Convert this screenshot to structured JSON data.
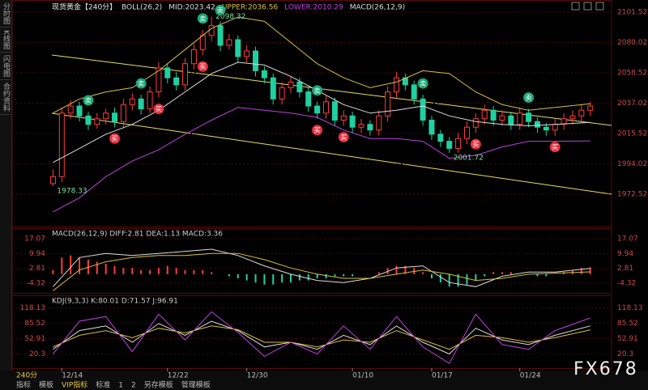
{
  "sidebar": [
    "分时图",
    "K线图",
    "闪电图",
    "合约资料"
  ],
  "chart_data": [
    {
      "type": "candlestick",
      "title": "现货黄金【240分】",
      "indicator_labels": [
        "BOLL(26,2)",
        "MID:2023.42",
        "UPPER:2036.56",
        "LOWER:2010.29",
        "MACD(26,12,9)"
      ],
      "indicator_colors": [
        "#dddddd",
        "#dddddd",
        "#d8c040",
        "#c040e0",
        "#dddddd"
      ],
      "xlim": [
        -0.5,
        62.5
      ],
      "xticks": [
        {
          "value": 1,
          "label": "12/14"
        },
        {
          "value": 13,
          "label": "12/22"
        },
        {
          "value": 22,
          "label": "12/30"
        },
        {
          "value": 34,
          "label": "01/10"
        },
        {
          "value": 43,
          "label": "01/17"
        },
        {
          "value": 53,
          "label": "01/24"
        }
      ],
      "ylim": [
        1949.6,
        2108.4
      ],
      "yticks": [
        2101.52,
        2080.02,
        2058.52,
        2037.02,
        2015.52,
        1994.02,
        1972.52
      ],
      "grid": true,
      "up_color": "#ff3c3c",
      "down_color": "#20d0a0",
      "open": [
        1980,
        1985,
        2030,
        2035,
        2028,
        2022,
        2026,
        2030,
        2024,
        2036,
        2040,
        2033,
        2045,
        2062,
        2055,
        2050,
        2065,
        2075,
        2085,
        2092,
        2078,
        2082,
        2070,
        2074,
        2060,
        2055,
        2040,
        2048,
        2052,
        2045,
        2035,
        2030,
        2038,
        2025,
        2028,
        2020,
        2022,
        2018,
        2028,
        2045,
        2055,
        2050,
        2040,
        2025,
        2015,
        2010,
        2005,
        2012,
        2020,
        2026,
        2032,
        2025,
        2028,
        2022,
        2030,
        2024,
        2020,
        2018,
        2022,
        2026,
        2028,
        2032
      ],
      "high": [
        1990,
        2034,
        2039,
        2038,
        2031,
        2030,
        2033,
        2034,
        2040,
        2044,
        2043,
        2049,
        2066,
        2065,
        2059,
        2069,
        2079,
        2089,
        2098.32,
        2095,
        2086,
        2085,
        2078,
        2077,
        2063,
        2058,
        2052,
        2056,
        2055,
        2048,
        2038,
        2042,
        2041,
        2032,
        2031,
        2026,
        2025,
        2032,
        2049,
        2059,
        2058,
        2053,
        2043,
        2028,
        2018,
        2013,
        2016,
        2024,
        2030,
        2036,
        2035,
        2032,
        2031,
        2034,
        2033,
        2027,
        2023,
        2026,
        2030,
        2032,
        2036,
        2038
      ],
      "low": [
        1978.33,
        1981,
        2026,
        2024,
        2018,
        2019,
        2022,
        2020,
        2020,
        2032,
        2029,
        2030,
        2041,
        2051,
        2046,
        2046,
        2061,
        2071,
        2081,
        2074,
        2075,
        2066,
        2066,
        2056,
        2051,
        2036,
        2036,
        2044,
        2041,
        2031,
        2026,
        2026,
        2021,
        2021,
        2016,
        2016,
        2014,
        2014,
        2024,
        2041,
        2046,
        2036,
        2021,
        2011,
        2006,
        2001.72,
        2002,
        2008,
        2016,
        2022,
        2021,
        2021,
        2018,
        2018,
        2020,
        2016,
        2014,
        2014,
        2018,
        2022,
        2024,
        2028
      ],
      "close": [
        1985,
        2030,
        2035,
        2028,
        2022,
        2026,
        2030,
        2024,
        2036,
        2040,
        2033,
        2045,
        2062,
        2055,
        2050,
        2065,
        2075,
        2085,
        2092,
        2078,
        2082,
        2070,
        2074,
        2060,
        2055,
        2040,
        2048,
        2052,
        2045,
        2035,
        2030,
        2038,
        2025,
        2028,
        2020,
        2022,
        2018,
        2028,
        2045,
        2055,
        2050,
        2040,
        2025,
        2015,
        2010,
        2005,
        2012,
        2020,
        2026,
        2032,
        2025,
        2028,
        2022,
        2030,
        2024,
        2020,
        2018,
        2022,
        2026,
        2028,
        2032,
        2035
      ],
      "series": [
        {
          "color": "#dddddd",
          "x": [
            0,
            3,
            6,
            9,
            12,
            15,
            18,
            21,
            24,
            27,
            30,
            33,
            36,
            39,
            42,
            45,
            48,
            51,
            54,
            57,
            61
          ],
          "values": [
            1995,
            2005,
            2015,
            2022,
            2032,
            2045,
            2058,
            2066,
            2064,
            2056,
            2046,
            2036,
            2030,
            2032,
            2035,
            2028,
            2024,
            2022,
            2021,
            2022,
            2023.42
          ]
        },
        {
          "color": "#d8c040",
          "x": [
            0,
            3,
            6,
            9,
            12,
            15,
            18,
            21,
            24,
            27,
            30,
            33,
            36,
            39,
            42,
            45,
            48,
            51,
            54,
            57,
            61
          ],
          "values": [
            2030,
            2040,
            2045,
            2048,
            2060,
            2075,
            2090,
            2098,
            2095,
            2080,
            2065,
            2055,
            2048,
            2052,
            2060,
            2058,
            2045,
            2036,
            2032,
            2034,
            2036.56
          ]
        },
        {
          "color": "#c040e0",
          "x": [
            0,
            3,
            6,
            9,
            12,
            15,
            18,
            21,
            24,
            27,
            30,
            33,
            36,
            39,
            42,
            45,
            48,
            51,
            54,
            57,
            61
          ],
          "values": [
            1960,
            1970,
            1985,
            1996,
            2004,
            2015,
            2025,
            2034,
            2032,
            2030,
            2027,
            2018,
            2012,
            2012,
            2010,
            1998,
            2000,
            2006,
            2010,
            2010,
            2010.29
          ]
        }
      ],
      "annotations": [
        {
          "index": 18,
          "value": 2098.32
        },
        {
          "index": 0,
          "value": 1978.33
        },
        {
          "index": 45,
          "value": 2001.72
        }
      ],
      "annotation_color": "#7de0a0",
      "signals": [
        {
          "index": 4,
          "label": "卖",
          "color": "#1aa878",
          "position": "above"
        },
        {
          "index": 10,
          "label": "卖",
          "color": "#1aa878",
          "position": "above"
        },
        {
          "index": 17,
          "label": "卖",
          "color": "#1aa878",
          "position": "above"
        },
        {
          "index": 19,
          "label": "卖",
          "color": "#1aa878",
          "position": "above"
        },
        {
          "index": 30,
          "label": "卖",
          "color": "#1aa878",
          "position": "above"
        },
        {
          "index": 42,
          "label": "卖",
          "color": "#1aa878",
          "position": "above"
        },
        {
          "index": 54,
          "label": "卖",
          "color": "#1aa878",
          "position": "above"
        },
        {
          "index": 7,
          "label": "买",
          "color": "#e83040",
          "position": "below"
        },
        {
          "index": 12,
          "label": "买",
          "color": "#e83040",
          "position": "below"
        },
        {
          "index": 17,
          "label": "买",
          "color": "#e83040",
          "position": "below"
        },
        {
          "index": 30,
          "label": "买",
          "color": "#e83040",
          "position": "below"
        },
        {
          "index": 33,
          "label": "买",
          "color": "#e83040",
          "position": "below"
        },
        {
          "index": 48,
          "label": "买",
          "color": "#e83040",
          "position": "below"
        },
        {
          "index": 57,
          "label": "买",
          "color": "#e83040",
          "position": "below"
        }
      ]
    },
    {
      "type": "macd",
      "title": "MACD(26,12,9) DIFF:2.81 DEA:1.13 MACD:3.36",
      "xlim": [
        -0.5,
        62.5
      ],
      "ylim": [
        -9,
        21.75
      ],
      "yticks": [
        17.07,
        9.94,
        2.81,
        -4.32
      ],
      "grid": true,
      "up_color": "#ff3c3c",
      "down_color": "#20d0a0",
      "values": [
        2,
        8,
        9,
        8,
        7,
        6,
        5,
        4,
        3,
        3,
        2,
        2,
        3,
        4,
        3,
        2,
        2,
        2,
        1,
        0,
        -1,
        -2,
        -3,
        -4,
        -5,
        -5,
        -4,
        -4,
        -3,
        -3,
        -2,
        -2,
        -1,
        -1,
        -1,
        0,
        0,
        1,
        3,
        4,
        4,
        3,
        1,
        -2,
        -4,
        -6,
        -6,
        -5,
        -3,
        -1,
        1,
        1,
        1,
        0,
        0,
        -1,
        -1,
        0,
        1,
        2,
        3,
        3.36
      ],
      "series": [
        {
          "color": "#dddddd",
          "x": [
            0,
            3,
            6,
            9,
            12,
            15,
            18,
            21,
            24,
            27,
            30,
            33,
            36,
            39,
            42,
            45,
            48,
            51,
            54,
            57,
            61
          ],
          "values": [
            -6,
            8,
            10,
            9,
            10,
            11,
            12,
            9,
            4,
            0,
            -3,
            -4,
            -2,
            3,
            4,
            -4,
            -6,
            -1,
            1,
            1,
            2.81
          ]
        },
        {
          "color": "#d8c040",
          "x": [
            0,
            3,
            6,
            9,
            12,
            15,
            18,
            21,
            24,
            27,
            30,
            33,
            36,
            39,
            42,
            45,
            48,
            51,
            54,
            57,
            61
          ],
          "values": [
            -8,
            2,
            6,
            8,
            9,
            9,
            10,
            10,
            7,
            3,
            0,
            -2,
            -2,
            0,
            2,
            0,
            -3,
            -2,
            0,
            0.5,
            1.13
          ]
        }
      ]
    },
    {
      "type": "line",
      "title": "KDJ(9,3,3) K:80.01 D:71.57 J:96.91",
      "xlim": [
        -0.5,
        62.5
      ],
      "ylim": [
        -5,
        143.5
      ],
      "yticks": [
        118.13,
        85.52,
        52.91,
        20.3
      ],
      "grid": true,
      "series": [
        {
          "color": "#dddddd",
          "x": [
            0,
            3,
            6,
            9,
            12,
            15,
            18,
            21,
            24,
            27,
            30,
            33,
            36,
            39,
            42,
            45,
            48,
            51,
            54,
            57,
            61
          ],
          "values": [
            30,
            70,
            80,
            45,
            85,
            60,
            90,
            70,
            35,
            45,
            30,
            60,
            40,
            80,
            45,
            20,
            75,
            50,
            40,
            60,
            80.01
          ]
        },
        {
          "color": "#d8c040",
          "x": [
            0,
            3,
            6,
            9,
            12,
            15,
            18,
            21,
            24,
            27,
            30,
            33,
            36,
            39,
            42,
            45,
            48,
            51,
            54,
            57,
            61
          ],
          "values": [
            35,
            60,
            70,
            55,
            75,
            65,
            80,
            72,
            45,
            45,
            35,
            50,
            45,
            70,
            50,
            30,
            60,
            55,
            45,
            55,
            71.57
          ]
        },
        {
          "color": "#c040e0",
          "x": [
            0,
            3,
            6,
            9,
            12,
            15,
            18,
            21,
            24,
            27,
            30,
            33,
            36,
            39,
            42,
            45,
            48,
            51,
            54,
            57,
            61
          ],
          "values": [
            20,
            90,
            100,
            25,
            105,
            50,
            110,
            66,
            15,
            45,
            20,
            80,
            30,
            100,
            35,
            0,
            105,
            40,
            30,
            70,
            96.91
          ]
        }
      ]
    }
  ],
  "toolbar": [
    "240分",
    "指标",
    "模板",
    "VIP指标",
    "标准",
    "1",
    "2",
    "另存模板",
    "管理模板"
  ],
  "watermark": "FX678"
}
